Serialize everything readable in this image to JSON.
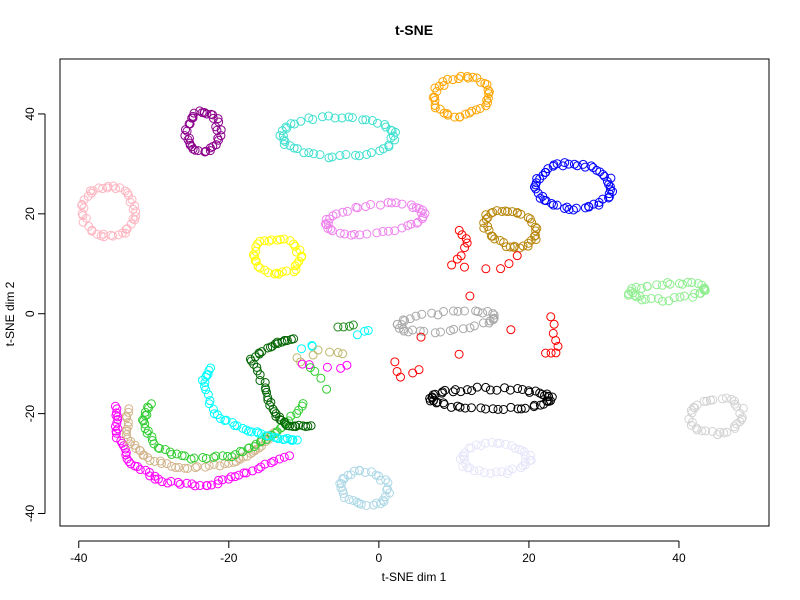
{
  "chart_data": {
    "type": "scatter",
    "title": "t-SNE",
    "xlabel": "t-SNE dim 1",
    "ylabel": "t-SNE dim 2",
    "xlim": [
      -42.5,
      52
    ],
    "ylim": [
      -42.5,
      51
    ],
    "xticks": [
      -40,
      -20,
      0,
      20,
      40
    ],
    "yticks": [
      -40,
      -20,
      0,
      20,
      40
    ],
    "marker": "open-circle",
    "series": [
      {
        "name": "cluster-purple",
        "color": "#8B008B",
        "shape": "ring",
        "center": [
          -23.5,
          36.5
        ],
        "rx": 2.2,
        "ry": 4.0,
        "tilt": 0.0,
        "n": 40
      },
      {
        "name": "cluster-turquoise",
        "color": "#40E0D0",
        "shape": "ring",
        "center": [
          -5.5,
          35.5
        ],
        "rx": 7.5,
        "ry": 4.0,
        "tilt": 0.0,
        "n": 50
      },
      {
        "name": "cluster-orange",
        "color": "#FFA500",
        "shape": "ring",
        "center": [
          11.0,
          43.5
        ],
        "rx": 3.5,
        "ry": 4.0,
        "tilt": -0.4,
        "n": 40
      },
      {
        "name": "cluster-pink",
        "color": "#FFB6C1",
        "shape": "ring",
        "center": [
          -36.0,
          20.5
        ],
        "rx": 3.5,
        "ry": 5.0,
        "tilt": 0.0,
        "n": 45
      },
      {
        "name": "cluster-violet",
        "color": "#EE82EE",
        "shape": "ring",
        "center": [
          -0.5,
          19.0
        ],
        "rx": 6.5,
        "ry": 2.8,
        "tilt": 0.2,
        "n": 45
      },
      {
        "name": "cluster-blue",
        "color": "#0000FF",
        "shape": "ring",
        "center": [
          26.0,
          25.5
        ],
        "rx": 5.0,
        "ry": 4.5,
        "tilt": -0.2,
        "n": 55
      },
      {
        "name": "cluster-goldenrod",
        "color": "#B8860B",
        "shape": "ring",
        "center": [
          17.5,
          17.0
        ],
        "rx": 3.0,
        "ry": 4.0,
        "tilt": 0.6,
        "n": 40
      },
      {
        "name": "cluster-yellow",
        "color": "#FFFF00",
        "shape": "ring",
        "center": [
          -13.5,
          11.5
        ],
        "rx": 3.0,
        "ry": 3.5,
        "tilt": 0.3,
        "n": 35
      },
      {
        "name": "cluster-lightgreen",
        "color": "#90EE90",
        "shape": "ring",
        "center": [
          38.5,
          4.5
        ],
        "rx": 5.0,
        "ry": 1.6,
        "tilt": 0.1,
        "n": 40
      },
      {
        "name": "cluster-gray",
        "color": "#A9A9A9",
        "shape": "ring",
        "center": [
          9.0,
          -1.5
        ],
        "rx": 6.5,
        "ry": 1.8,
        "tilt": 0.15,
        "n": 40
      },
      {
        "name": "cluster-black",
        "color": "#000000",
        "shape": "ring",
        "center": [
          15.0,
          -17.0
        ],
        "rx": 8.0,
        "ry": 2.0,
        "tilt": 0.0,
        "n": 60
      },
      {
        "name": "cluster-lavender",
        "color": "#E6E6FA",
        "shape": "ring",
        "center": [
          15.5,
          -29.0
        ],
        "rx": 4.5,
        "ry": 3.0,
        "tilt": 0.0,
        "n": 40
      },
      {
        "name": "cluster-lightgray",
        "color": "#D3D3D3",
        "shape": "ring",
        "center": [
          45.0,
          -20.5
        ],
        "rx": 3.5,
        "ry": 3.5,
        "tilt": 0.0,
        "n": 35
      },
      {
        "name": "cluster-lightblue",
        "color": "#ADD8E6",
        "shape": "ring",
        "center": [
          -2.0,
          -35.0
        ],
        "rx": 3.0,
        "ry": 3.5,
        "tilt": 0.5,
        "n": 35
      },
      {
        "name": "cluster-red",
        "color": "#FF0000",
        "shape": "path",
        "points": [
          [
            10.5,
            16.5
          ],
          [
            12.0,
            15.0
          ],
          [
            11.0,
            12.0
          ],
          [
            9.5,
            9.5
          ],
          [
            16.0,
            8.5
          ],
          [
            18.5,
            11.5
          ],
          [
            2.0,
            -9.0
          ],
          [
            3.0,
            -13.0
          ],
          [
            6.0,
            -11.0
          ],
          [
            23.0,
            0.0
          ],
          [
            23.5,
            -4.0
          ],
          [
            24.0,
            -7.5
          ],
          [
            22.0,
            -8.0
          ]
        ],
        "n": 30
      },
      {
        "name": "cluster-magenta",
        "color": "#FF00FF",
        "shape": "path",
        "points": [
          [
            -35.0,
            -18.5
          ],
          [
            -35.0,
            -24.0
          ],
          [
            -33.0,
            -30.0
          ],
          [
            -29.0,
            -33.5
          ],
          [
            -23.0,
            -34.5
          ],
          [
            -18.0,
            -32.0
          ],
          [
            -12.0,
            -28.5
          ]
        ],
        "n": 60
      },
      {
        "name": "cluster-tan",
        "color": "#D2B48C",
        "shape": "path",
        "points": [
          [
            -33.5,
            -19.0
          ],
          [
            -33.5,
            -25.0
          ],
          [
            -31.0,
            -29.0
          ],
          [
            -26.0,
            -31.0
          ],
          [
            -20.0,
            -30.0
          ],
          [
            -16.5,
            -27.5
          ],
          [
            -14.0,
            -24.0
          ]
        ],
        "n": 55
      },
      {
        "name": "cluster-green",
        "color": "#32CD32",
        "shape": "path",
        "points": [
          [
            -30.5,
            -18.0
          ],
          [
            -31.5,
            -22.0
          ],
          [
            -29.5,
            -27.0
          ],
          [
            -25.0,
            -29.0
          ],
          [
            -19.5,
            -28.5
          ],
          [
            -16.0,
            -26.0
          ],
          [
            -13.0,
            -23.0
          ],
          [
            -10.0,
            -18.0
          ]
        ],
        "n": 55
      },
      {
        "name": "cluster-darkgreen",
        "color": "#006400",
        "shape": "path",
        "points": [
          [
            -11.5,
            -5.0
          ],
          [
            -14.0,
            -6.0
          ],
          [
            -17.0,
            -9.0
          ],
          [
            -15.0,
            -15.0
          ],
          [
            -14.0,
            -20.0
          ],
          [
            -12.0,
            -22.5
          ],
          [
            -9.0,
            -22.5
          ]
        ],
        "n": 50
      },
      {
        "name": "cluster-cyan",
        "color": "#00FFFF",
        "shape": "path",
        "points": [
          [
            -22.5,
            -11.0
          ],
          [
            -23.5,
            -14.0
          ],
          [
            -22.0,
            -20.0
          ],
          [
            -19.0,
            -22.5
          ],
          [
            -16.0,
            -24.0
          ],
          [
            -13.0,
            -25.0
          ],
          [
            -11.0,
            -25.5
          ]
        ],
        "n": 40
      },
      {
        "name": "cluster-green-sparse",
        "color": "#228B22",
        "shape": "path",
        "points": [
          [
            -5.5,
            -2.5
          ],
          [
            -4.0,
            -2.5
          ],
          [
            -3.5,
            -2.5
          ]
        ],
        "n": 4
      },
      {
        "name": "cluster-cyan-sparse",
        "color": "#00FFFF",
        "shape": "path",
        "points": [
          [
            -2.0,
            -3.5
          ],
          [
            -1.0,
            -3.5
          ],
          [
            -11.0,
            -7.5
          ],
          [
            -9.0,
            -6.5
          ]
        ],
        "n": 6
      },
      {
        "name": "cluster-tan-sparse",
        "color": "#BDB76B",
        "shape": "path",
        "points": [
          [
            -8.0,
            -7.5
          ],
          [
            -6.0,
            -8.0
          ],
          [
            -5.0,
            -8.0
          ],
          [
            -11.0,
            -8.5
          ],
          [
            -10.5,
            -9.5
          ]
        ],
        "n": 7
      },
      {
        "name": "cluster-magenta-sparse",
        "color": "#FF00FF",
        "shape": "path",
        "points": [
          [
            -10.0,
            -10.0
          ],
          [
            -9.0,
            -10.5
          ],
          [
            -5.0,
            -11.0
          ],
          [
            -4.5,
            -10.5
          ]
        ],
        "n": 5
      },
      {
        "name": "cluster-lime-sparse",
        "color": "#32CD32",
        "shape": "path",
        "points": [
          [
            -9.0,
            -11.0
          ],
          [
            -8.0,
            -12.0
          ],
          [
            -7.0,
            -15.0
          ]
        ],
        "n": 4
      }
    ]
  }
}
